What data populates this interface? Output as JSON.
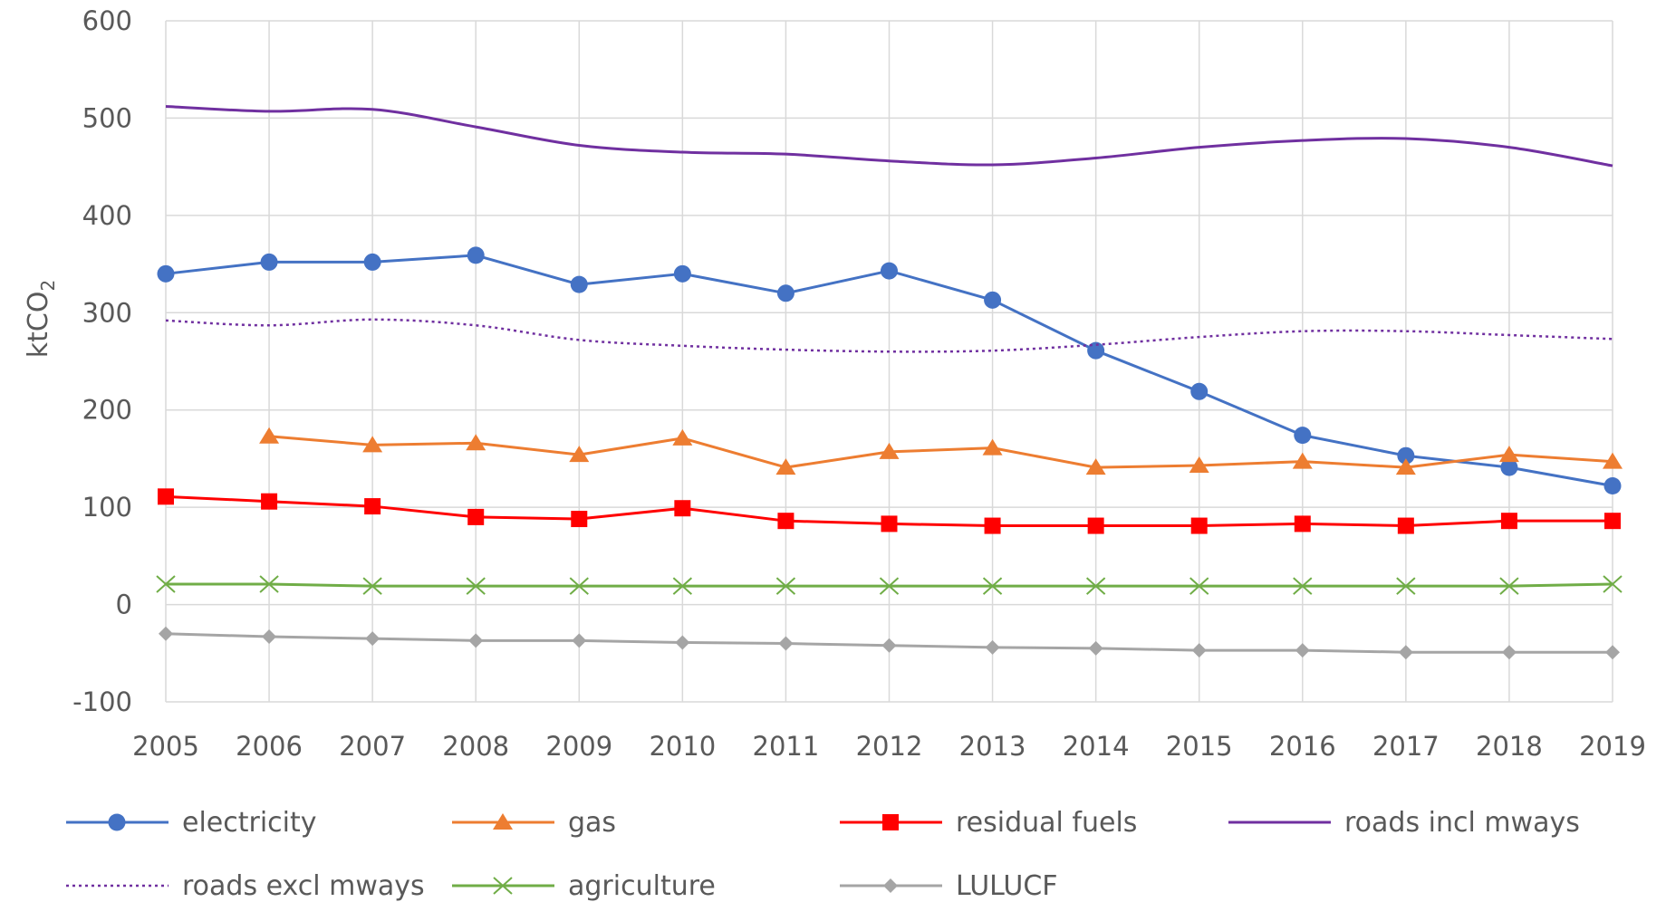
{
  "chart_data": {
    "type": "line",
    "title": "",
    "xlabel": "",
    "ylabel": "ktCO",
    "ylabel_subscript": "2",
    "x": [
      2005,
      2006,
      2007,
      2008,
      2009,
      2010,
      2011,
      2012,
      2013,
      2014,
      2015,
      2016,
      2017,
      2018,
      2019
    ],
    "ylim": [
      -100,
      600
    ],
    "yticks": [
      -100,
      0,
      100,
      200,
      300,
      400,
      500,
      600
    ],
    "grid": true,
    "legend_position": "bottom",
    "series": [
      {
        "name": "electricity",
        "color": "#4472C4",
        "marker": "circle",
        "line_style": "solid",
        "smooth": false,
        "values": [
          340,
          352,
          352,
          359,
          329,
          340,
          320,
          343,
          313,
          261,
          219,
          174,
          153,
          141,
          122
        ]
      },
      {
        "name": "gas",
        "color": "#ED7D31",
        "marker": "triangle",
        "line_style": "solid",
        "smooth": false,
        "values": [
          null,
          173,
          164,
          166,
          154,
          171,
          141,
          157,
          161,
          141,
          143,
          147,
          141,
          154,
          147
        ]
      },
      {
        "name": "residual fuels",
        "color": "#FF0000",
        "marker": "square",
        "line_style": "solid",
        "smooth": false,
        "values": [
          111,
          106,
          101,
          90,
          88,
          99,
          86,
          83,
          81,
          81,
          81,
          83,
          81,
          86,
          86
        ]
      },
      {
        "name": "roads incl mways",
        "color": "#7030A0",
        "marker": "none",
        "line_style": "solid",
        "smooth": true,
        "values": [
          512,
          507,
          509,
          491,
          472,
          465,
          463,
          456,
          452,
          459,
          470,
          477,
          479,
          470,
          451
        ]
      },
      {
        "name": "roads excl mways",
        "color": "#7030A0",
        "marker": "none",
        "line_style": "dotted",
        "smooth": true,
        "values": [
          292,
          287,
          293,
          287,
          272,
          266,
          262,
          260,
          261,
          267,
          275,
          281,
          281,
          277,
          273
        ]
      },
      {
        "name": "agriculture",
        "color": "#70AD47",
        "marker": "x",
        "line_style": "solid",
        "smooth": false,
        "values": [
          21,
          21,
          19,
          19,
          19,
          19,
          19,
          19,
          19,
          19,
          19,
          19,
          19,
          19,
          21
        ]
      },
      {
        "name": "LULUCF",
        "color": "#A5A5A5",
        "marker": "diamond",
        "line_style": "solid",
        "smooth": false,
        "values": [
          -30,
          -33,
          -35,
          -37,
          -37,
          -39,
          -40,
          -42,
          -44,
          -45,
          -47,
          -47,
          -49,
          -49,
          -49
        ]
      }
    ]
  }
}
